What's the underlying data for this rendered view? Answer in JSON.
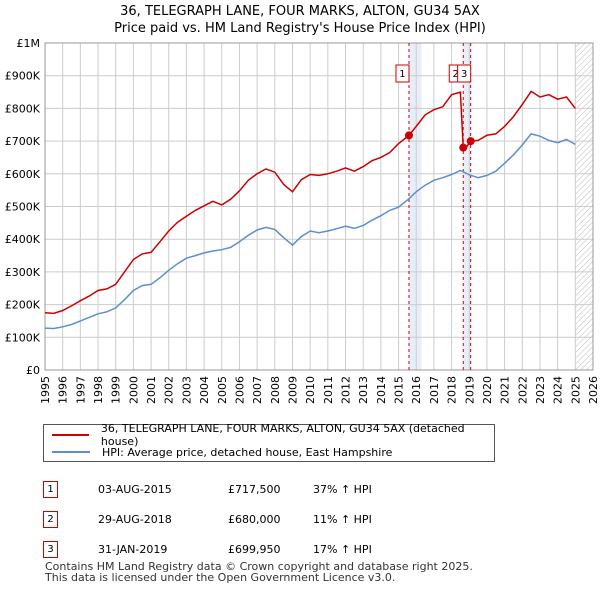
{
  "header": {
    "title": "36, TELEGRAPH LANE, FOUR MARKS, ALTON, GU34 5AX",
    "subtitle": "Price paid vs. HM Land Registry's House Price Index (HPI)"
  },
  "colors": {
    "property": "#cc0000",
    "hpi": "#5b8fcf",
    "band": "#e8eef8",
    "grid": "#cccccc"
  },
  "legend": {
    "property_label": "36, TELEGRAPH LANE, FOUR MARKS, ALTON, GU34 5AX (detached house)",
    "hpi_label": "HPI: Average price, detached house, East Hampshire"
  },
  "sales": [
    {
      "num": "1",
      "date": "03-AUG-2015",
      "price": "£717,500",
      "change": "37% ↑ HPI"
    },
    {
      "num": "2",
      "date": "29-AUG-2018",
      "price": "£680,000",
      "change": "11% ↑ HPI"
    },
    {
      "num": "3",
      "date": "31-JAN-2019",
      "price": "£699,950",
      "change": "17% ↑ HPI"
    }
  ],
  "footer": {
    "line1": "Contains HM Land Registry data © Crown copyright and database right 2025.",
    "line2": "This data is licensed under the Open Government Licence v3.0."
  },
  "chart_data": {
    "type": "line",
    "title": "36, TELEGRAPH LANE, FOUR MARKS, ALTON, GU34 5AX",
    "subtitle": "Price paid vs. HM Land Registry's House Price Index (HPI)",
    "xlabel": "",
    "ylabel": "",
    "xlim": [
      1995,
      2026
    ],
    "ylim": [
      0,
      1000000
    ],
    "grid": true,
    "legend_position": "bottom",
    "y_ticks": [
      {
        "value": 0,
        "label": "£0"
      },
      {
        "value": 100000,
        "label": "£100K"
      },
      {
        "value": 200000,
        "label": "£200K"
      },
      {
        "value": 300000,
        "label": "£300K"
      },
      {
        "value": 400000,
        "label": "£400K"
      },
      {
        "value": 500000,
        "label": "£500K"
      },
      {
        "value": 600000,
        "label": "£600K"
      },
      {
        "value": 700000,
        "label": "£700K"
      },
      {
        "value": 800000,
        "label": "£800K"
      },
      {
        "value": 900000,
        "label": "£900K"
      },
      {
        "value": 1000000,
        "label": "£1M"
      }
    ],
    "x_ticks": [
      "1995",
      "1996",
      "1997",
      "1998",
      "1999",
      "2000",
      "2001",
      "2002",
      "2003",
      "2004",
      "2005",
      "2006",
      "2007",
      "2008",
      "2009",
      "2010",
      "2011",
      "2012",
      "2013",
      "2014",
      "2015",
      "2016",
      "2017",
      "2018",
      "2019",
      "2020",
      "2021",
      "2022",
      "2023",
      "2024",
      "2025",
      "2026"
    ],
    "sale_markers": [
      {
        "label": "1",
        "x": 2015.59,
        "y": 717500
      },
      {
        "label": "2",
        "x": 2018.66,
        "y": 680000
      },
      {
        "label": "3",
        "x": 2019.08,
        "y": 699950
      }
    ],
    "highlight_bands": [
      [
        2015.59,
        2016.3
      ],
      [
        2018.66,
        2019.08
      ]
    ],
    "projection_from": 2025.0,
    "series": [
      {
        "name": "36, TELEGRAPH LANE, FOUR MARKS, ALTON, GU34 5AX (detached house)",
        "x": [
          1995.0,
          1995.5,
          1996.0,
          1996.5,
          1997.0,
          1997.5,
          1998.0,
          1998.5,
          1999.0,
          1999.5,
          2000.0,
          2000.5,
          2001.0,
          2001.5,
          2002.0,
          2002.5,
          2003.0,
          2003.5,
          2004.0,
          2004.5,
          2005.0,
          2005.5,
          2006.0,
          2006.5,
          2007.0,
          2007.5,
          2008.0,
          2008.5,
          2009.0,
          2009.5,
          2010.0,
          2010.5,
          2011.0,
          2011.5,
          2012.0,
          2012.5,
          2013.0,
          2013.5,
          2014.0,
          2014.5,
          2015.0,
          2015.59,
          2016.0,
          2016.5,
          2017.0,
          2017.5,
          2018.0,
          2018.5,
          2018.66,
          2018.75,
          2019.08,
          2019.5,
          2020.0,
          2020.5,
          2021.0,
          2021.5,
          2022.0,
          2022.5,
          2023.0,
          2023.5,
          2024.0,
          2024.5,
          2025.0
        ],
        "values": [
          175000,
          173000,
          182000,
          196000,
          212000,
          226000,
          243000,
          248000,
          262000,
          300000,
          338000,
          355000,
          360000,
          392000,
          425000,
          452000,
          470000,
          488000,
          502000,
          516000,
          505000,
          522000,
          548000,
          580000,
          600000,
          615000,
          605000,
          568000,
          545000,
          582000,
          598000,
          595000,
          600000,
          608000,
          618000,
          608000,
          622000,
          640000,
          650000,
          665000,
          692000,
          717500,
          745000,
          780000,
          796000,
          805000,
          842000,
          850000,
          680000,
          675000,
          699950,
          702000,
          718000,
          722000,
          745000,
          775000,
          812000,
          852000,
          835000,
          842000,
          828000,
          835000,
          800000
        ]
      },
      {
        "name": "HPI: Average price, detached house, East Hampshire",
        "x": [
          1995.0,
          1995.5,
          1996.0,
          1996.5,
          1997.0,
          1997.5,
          1998.0,
          1998.5,
          1999.0,
          1999.5,
          2000.0,
          2000.5,
          2001.0,
          2001.5,
          2002.0,
          2002.5,
          2003.0,
          2003.5,
          2004.0,
          2004.5,
          2005.0,
          2005.5,
          2006.0,
          2006.5,
          2007.0,
          2007.5,
          2008.0,
          2008.5,
          2009.0,
          2009.5,
          2010.0,
          2010.5,
          2011.0,
          2011.5,
          2012.0,
          2012.5,
          2013.0,
          2013.5,
          2014.0,
          2014.5,
          2015.0,
          2015.59,
          2016.0,
          2016.5,
          2017.0,
          2017.5,
          2018.0,
          2018.5,
          2019.0,
          2019.5,
          2020.0,
          2020.5,
          2021.0,
          2021.5,
          2022.0,
          2022.5,
          2023.0,
          2023.5,
          2024.0,
          2024.5,
          2025.0
        ],
        "values": [
          128000,
          127000,
          132000,
          139000,
          150000,
          161000,
          172000,
          178000,
          190000,
          215000,
          243000,
          258000,
          262000,
          282000,
          305000,
          325000,
          342000,
          350000,
          358000,
          364000,
          368000,
          375000,
          392000,
          412000,
          428000,
          436000,
          430000,
          405000,
          382000,
          408000,
          425000,
          420000,
          425000,
          432000,
          440000,
          433000,
          442000,
          458000,
          472000,
          488000,
          498000,
          524000,
          545000,
          565000,
          580000,
          588000,
          598000,
          610000,
          597000,
          588000,
          595000,
          608000,
          632000,
          658000,
          688000,
          722000,
          715000,
          702000,
          695000,
          705000,
          690000
        ]
      }
    ]
  }
}
